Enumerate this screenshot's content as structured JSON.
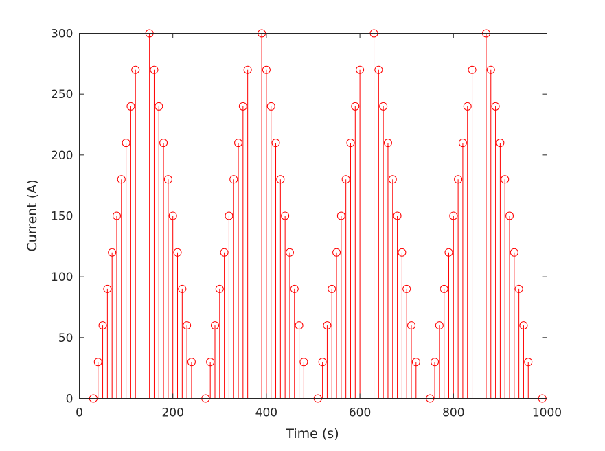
{
  "chart_data": {
    "type": "stem",
    "title": "",
    "xlabel": "Time (s)",
    "ylabel": "Current (A)",
    "xlim": [
      0,
      1000
    ],
    "ylim": [
      0,
      300
    ],
    "xticks": [
      0,
      200,
      400,
      600,
      800,
      1000
    ],
    "yticks": [
      0,
      50,
      100,
      150,
      200,
      250,
      300
    ],
    "grid": false,
    "color": "#ff0000",
    "marker": "circle-open",
    "x": [
      30,
      40,
      50,
      60,
      70,
      80,
      90,
      100,
      110,
      120,
      150,
      160,
      170,
      180,
      190,
      200,
      210,
      220,
      230,
      240,
      270,
      280,
      290,
      300,
      310,
      320,
      330,
      340,
      350,
      360,
      390,
      400,
      410,
      420,
      430,
      440,
      450,
      460,
      470,
      480,
      510,
      520,
      530,
      540,
      550,
      560,
      570,
      580,
      590,
      600,
      630,
      640,
      650,
      660,
      670,
      680,
      690,
      700,
      710,
      720,
      750,
      760,
      770,
      780,
      790,
      800,
      810,
      820,
      830,
      840,
      870,
      880,
      890,
      900,
      910,
      920,
      930,
      940,
      950,
      960,
      990
    ],
    "y": [
      0,
      30,
      60,
      90,
      120,
      150,
      180,
      210,
      240,
      270,
      300,
      270,
      240,
      210,
      180,
      150,
      120,
      90,
      60,
      30,
      0,
      30,
      60,
      90,
      120,
      150,
      180,
      210,
      240,
      270,
      300,
      270,
      240,
      210,
      180,
      150,
      120,
      90,
      60,
      30,
      0,
      30,
      60,
      90,
      120,
      150,
      180,
      210,
      240,
      270,
      300,
      270,
      240,
      210,
      180,
      150,
      120,
      90,
      60,
      30,
      0,
      30,
      60,
      90,
      120,
      150,
      180,
      210,
      240,
      270,
      300,
      270,
      240,
      210,
      180,
      150,
      120,
      90,
      60,
      30,
      0
    ]
  }
}
